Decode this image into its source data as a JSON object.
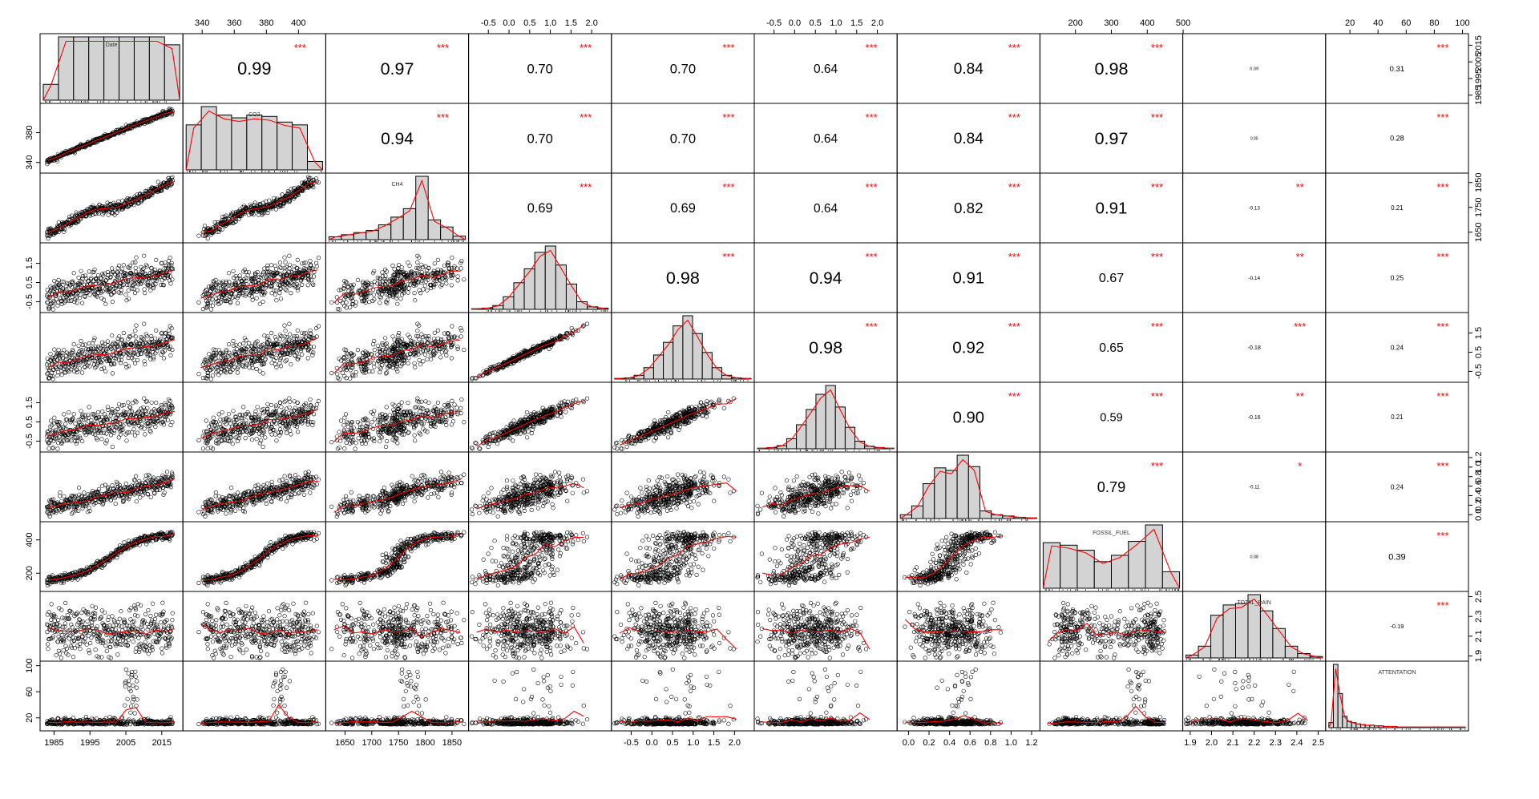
{
  "chart_data": {
    "type": "scatter",
    "subtype": "correlation-matrix",
    "title": "",
    "variables": [
      {
        "name": "Date",
        "range": [
          1982,
          2020
        ],
        "ticks": [
          "1985",
          "1995",
          "2005",
          "2015"
        ],
        "tick_values": [
          1985,
          1995,
          2005,
          2015
        ]
      },
      {
        "name": "CO2",
        "range": [
          330,
          415
        ],
        "ticks": [
          "340",
          "360",
          "380",
          "400"
        ],
        "tick_values": [
          340,
          360,
          380,
          400
        ]
      },
      {
        "name": "CH4",
        "range": [
          1620,
          1875
        ],
        "ticks": [
          "1650",
          "1700",
          "1750",
          "1800",
          "1850"
        ],
        "tick_values": [
          1650,
          1700,
          1750,
          1800,
          1850
        ]
      },
      {
        "name": "",
        "range": [
          -0.9,
          2.4
        ],
        "ticks": [
          "-0.5",
          "0.0",
          "0.5",
          "1.0",
          "1.5",
          "2.0"
        ],
        "tick_values": [
          -0.5,
          0,
          0.5,
          1,
          1.5,
          2
        ]
      },
      {
        "name": "",
        "range": [
          -0.9,
          2.4
        ],
        "ticks": [
          "-0.5",
          "0.0",
          "0.5",
          "1.0",
          "1.5",
          "2.0"
        ],
        "tick_values": [
          -0.5,
          0,
          0.5,
          1,
          1.5,
          2
        ]
      },
      {
        "name": "",
        "range": [
          -0.9,
          2.4
        ],
        "ticks": [
          "-0.5",
          "0.0",
          "0.5",
          "1.0",
          "1.5",
          "2.0"
        ],
        "tick_values": [
          -0.5,
          0,
          0.5,
          1,
          1.5,
          2
        ]
      },
      {
        "name": "",
        "range": [
          -0.08,
          1.25
        ],
        "ticks": [
          "0.0",
          "0.2",
          "0.4",
          "0.6",
          "0.8",
          "1.0",
          "1.2"
        ],
        "tick_values": [
          0,
          0.2,
          0.4,
          0.6,
          0.8,
          1,
          1.2
        ]
      },
      {
        "name": "FOSSIL_FUEL",
        "range": [
          110,
          490
        ],
        "ticks": [
          "200",
          "300",
          "400",
          "500"
        ],
        "tick_values": [
          200,
          300,
          400,
          500
        ]
      },
      {
        "name": "TOTAL_RAIN",
        "range": [
          1.88,
          2.52
        ],
        "ticks": [
          "1.9",
          "2.0",
          "2.1",
          "2.2",
          "2.3",
          "2.4",
          "2.5"
        ],
        "tick_values": [
          1.9,
          2,
          2.1,
          2.2,
          2.3,
          2.4,
          2.5
        ]
      },
      {
        "name": "ATTENTATION",
        "range": [
          5,
          102
        ],
        "ticks": [
          "20",
          "40",
          "60",
          "80",
          "100"
        ],
        "tick_values": [
          20,
          40,
          60,
          80,
          100
        ]
      }
    ],
    "right_axis_ticks": {
      "0": [
        "1985",
        "1995",
        "2005",
        "2015"
      ],
      "2": [
        "1650",
        "1750",
        "1850"
      ],
      "4": [
        "-0.5",
        "0.5",
        "1.5"
      ],
      "6": [
        "0.0",
        "0.2",
        "0.4",
        "0.6",
        "0.8",
        "1.0",
        "1.2"
      ],
      "8": [
        "1.9",
        "2.1",
        "2.3",
        "2.5"
      ]
    },
    "left_axis_ticks": {
      "1": [
        "340",
        "380"
      ],
      "3": [
        "-0.5",
        "0.5",
        "1.5"
      ],
      "5": [
        "-0.5",
        "0.5",
        "1.5"
      ],
      "7": [
        "200",
        "400"
      ],
      "9": [
        "20",
        "60",
        "100"
      ]
    },
    "top_axis_vars": [
      1,
      3,
      5,
      7,
      9
    ],
    "bottom_axis_vars": [
      0,
      2,
      4,
      6,
      8
    ],
    "correlations": [
      {
        "row": 0,
        "col": 1,
        "r": "0.99",
        "stars": "***"
      },
      {
        "row": 0,
        "col": 2,
        "r": "0.97",
        "stars": "***"
      },
      {
        "row": 0,
        "col": 3,
        "r": "0.70",
        "stars": "***"
      },
      {
        "row": 0,
        "col": 4,
        "r": "0.70",
        "stars": "***"
      },
      {
        "row": 0,
        "col": 5,
        "r": "0.64",
        "stars": "***"
      },
      {
        "row": 0,
        "col": 6,
        "r": "0.84",
        "stars": "***"
      },
      {
        "row": 0,
        "col": 7,
        "r": "0.98",
        "stars": "***"
      },
      {
        "row": 0,
        "col": 8,
        "r": "0.09",
        "stars": ""
      },
      {
        "row": 0,
        "col": 9,
        "r": "0.31",
        "stars": "***"
      },
      {
        "row": 1,
        "col": 2,
        "r": "0.94",
        "stars": "***"
      },
      {
        "row": 1,
        "col": 3,
        "r": "0.70",
        "stars": "***"
      },
      {
        "row": 1,
        "col": 4,
        "r": "0.70",
        "stars": "***"
      },
      {
        "row": 1,
        "col": 5,
        "r": "0.64",
        "stars": "***"
      },
      {
        "row": 1,
        "col": 6,
        "r": "0.84",
        "stars": "***"
      },
      {
        "row": 1,
        "col": 7,
        "r": "0.97",
        "stars": "***"
      },
      {
        "row": 1,
        "col": 8,
        "r": "0.05",
        "stars": ""
      },
      {
        "row": 1,
        "col": 9,
        "r": "0.28",
        "stars": "***"
      },
      {
        "row": 2,
        "col": 3,
        "r": "0.69",
        "stars": "***"
      },
      {
        "row": 2,
        "col": 4,
        "r": "0.69",
        "stars": "***"
      },
      {
        "row": 2,
        "col": 5,
        "r": "0.64",
        "stars": "***"
      },
      {
        "row": 2,
        "col": 6,
        "r": "0.82",
        "stars": "***"
      },
      {
        "row": 2,
        "col": 7,
        "r": "0.91",
        "stars": "***"
      },
      {
        "row": 2,
        "col": 8,
        "r": "-0.13",
        "stars": "**"
      },
      {
        "row": 2,
        "col": 9,
        "r": "0.21",
        "stars": "***"
      },
      {
        "row": 3,
        "col": 4,
        "r": "0.98",
        "stars": "***"
      },
      {
        "row": 3,
        "col": 5,
        "r": "0.94",
        "stars": "***"
      },
      {
        "row": 3,
        "col": 6,
        "r": "0.91",
        "stars": "***"
      },
      {
        "row": 3,
        "col": 7,
        "r": "0.67",
        "stars": "***"
      },
      {
        "row": 3,
        "col": 8,
        "r": "-0.14",
        "stars": "**"
      },
      {
        "row": 3,
        "col": 9,
        "r": "0.25",
        "stars": "***"
      },
      {
        "row": 4,
        "col": 5,
        "r": "0.98",
        "stars": "***"
      },
      {
        "row": 4,
        "col": 6,
        "r": "0.92",
        "stars": "***"
      },
      {
        "row": 4,
        "col": 7,
        "r": "0.65",
        "stars": "***"
      },
      {
        "row": 4,
        "col": 8,
        "r": "-0.18",
        "stars": "***"
      },
      {
        "row": 4,
        "col": 9,
        "r": "0.24",
        "stars": "***"
      },
      {
        "row": 5,
        "col": 6,
        "r": "0.90",
        "stars": "***"
      },
      {
        "row": 5,
        "col": 7,
        "r": "0.59",
        "stars": "***"
      },
      {
        "row": 5,
        "col": 8,
        "r": "-0.16",
        "stars": "**"
      },
      {
        "row": 5,
        "col": 9,
        "r": "0.21",
        "stars": "***"
      },
      {
        "row": 6,
        "col": 7,
        "r": "0.79",
        "stars": "***"
      },
      {
        "row": 6,
        "col": 8,
        "r": "-0.11",
        "stars": "*"
      },
      {
        "row": 6,
        "col": 9,
        "r": "0.24",
        "stars": "***"
      },
      {
        "row": 7,
        "col": 8,
        "r": "0.08",
        "stars": ""
      },
      {
        "row": 7,
        "col": 9,
        "r": "0.39",
        "stars": "***"
      },
      {
        "row": 8,
        "col": 9,
        "r": "-0.19",
        "stars": "***"
      }
    ],
    "histograms": [
      {
        "var": 0,
        "counts": [
          6,
          24,
          24,
          24,
          24,
          24,
          24,
          24,
          21
        ]
      },
      {
        "var": 1,
        "counts": [
          32,
          45,
          39,
          37,
          39,
          38,
          34,
          32,
          6
        ]
      },
      {
        "var": 2,
        "counts": [
          4,
          7,
          10,
          13,
          21,
          32,
          44,
          90,
          28,
          18,
          5
        ]
      },
      {
        "var": 3,
        "counts": [
          1,
          2,
          6,
          20,
          42,
          64,
          90,
          100,
          70,
          40,
          12,
          4,
          2
        ]
      },
      {
        "var": 4,
        "counts": [
          1,
          2,
          6,
          18,
          38,
          58,
          84,
          100,
          72,
          42,
          18,
          6,
          2,
          1
        ]
      },
      {
        "var": 5,
        "counts": [
          1,
          2,
          5,
          16,
          38,
          62,
          86,
          100,
          66,
          34,
          12,
          4,
          2,
          1
        ]
      },
      {
        "var": 6,
        "counts": [
          6,
          20,
          55,
          80,
          76,
          100,
          82,
          12,
          6,
          4,
          2,
          1
        ]
      },
      {
        "var": 7,
        "counts": [
          72,
          68,
          60,
          42,
          52,
          74,
          100,
          26
        ]
      },
      {
        "var": 8,
        "counts": [
          4,
          16,
          58,
          72,
          74,
          86,
          64,
          40,
          16,
          6,
          2
        ]
      },
      {
        "var": 9,
        "counts": [
          8,
          100,
          54,
          18,
          10,
          8,
          6,
          5,
          4,
          4,
          3,
          3,
          2,
          2,
          2,
          1,
          1,
          1,
          1,
          1,
          1,
          1,
          1,
          1,
          1,
          1,
          1,
          1,
          1,
          1
        ]
      }
    ],
    "n_points": 420
  }
}
